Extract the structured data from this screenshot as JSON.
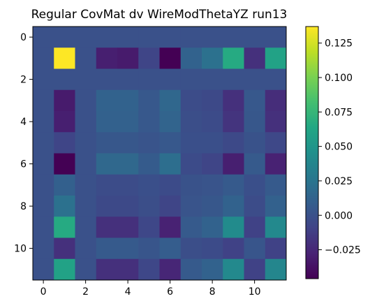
{
  "chart_data": {
    "type": "heatmap",
    "title": "Regular CovMat dv WireModThetaYZ run13",
    "xlabel": "",
    "ylabel": "",
    "colormap": "viridis",
    "rows": 12,
    "cols": 12,
    "x_ticks": [
      0,
      2,
      4,
      6,
      8,
      10
    ],
    "y_ticks": [
      0,
      2,
      4,
      6,
      8,
      10
    ],
    "color_range": [
      -0.046,
      0.137
    ],
    "colorbar_ticks": [
      0.125,
      0.1,
      0.075,
      0.05,
      0.025,
      0.0,
      -0.025
    ],
    "colorbar_tick_labels": [
      "0.125",
      "0.100",
      "0.075",
      "0.050",
      "0.025",
      "0.000",
      "−0.025"
    ],
    "grid": false,
    "values": [
      [
        0,
        0,
        0,
        0,
        0,
        0,
        0,
        0,
        0,
        0,
        0,
        0
      ],
      [
        0,
        0.137,
        0,
        -0.03,
        -0.032,
        -0.008,
        -0.046,
        0.012,
        0.022,
        0.066,
        -0.02,
        0.06
      ],
      [
        0,
        0,
        0,
        0,
        0,
        0,
        0,
        0,
        0,
        0,
        0,
        0
      ],
      [
        0,
        -0.032,
        0,
        0.012,
        0.012,
        0.005,
        0.015,
        -0.003,
        -0.005,
        -0.02,
        0.005,
        -0.022
      ],
      [
        0,
        -0.03,
        0,
        0.011,
        0.011,
        0.005,
        0.013,
        -0.002,
        -0.004,
        -0.018,
        0.004,
        -0.02
      ],
      [
        0,
        -0.008,
        0,
        0.004,
        0.004,
        0.002,
        0.005,
        -0.001,
        -0.001,
        -0.005,
        0.001,
        -0.006
      ],
      [
        0,
        -0.046,
        0,
        0.016,
        0.016,
        0.007,
        0.02,
        -0.004,
        -0.008,
        -0.03,
        0.006,
        -0.028
      ],
      [
        0,
        0.01,
        0,
        -0.003,
        -0.003,
        -0.001,
        -0.004,
        0.001,
        0.002,
        0.006,
        -0.001,
        0.006
      ],
      [
        0,
        0.022,
        0,
        -0.005,
        -0.005,
        -0.002,
        -0.008,
        0.002,
        0.004,
        0.012,
        -0.003,
        0.011
      ],
      [
        0,
        0.066,
        0,
        -0.02,
        -0.02,
        -0.007,
        -0.028,
        0.006,
        0.012,
        0.042,
        -0.01,
        0.04
      ],
      [
        0,
        -0.02,
        0,
        0.006,
        0.006,
        0.003,
        0.008,
        -0.002,
        -0.004,
        -0.01,
        0.003,
        -0.01
      ],
      [
        0,
        0.06,
        0,
        -0.02,
        -0.02,
        -0.007,
        -0.026,
        0.006,
        0.012,
        0.04,
        -0.01,
        0.038
      ]
    ]
  }
}
